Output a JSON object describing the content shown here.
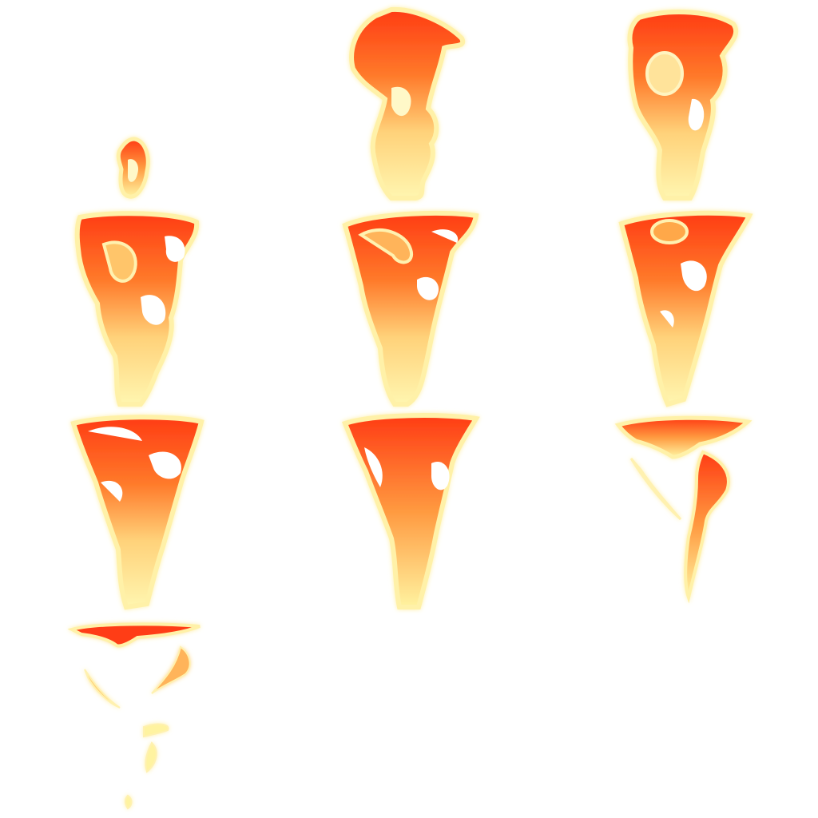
{
  "sprite_sheet": {
    "frame_count": 10,
    "columns": 3,
    "rows": 4,
    "colors": {
      "outer_glow": "#fffbd0",
      "outline": "#ffeea0",
      "core_red": "#ff3c14",
      "mid_orange": "#ff8a2a",
      "tail_yellow": "#fff3a0",
      "swirl_orange": "#ffa84a"
    }
  }
}
